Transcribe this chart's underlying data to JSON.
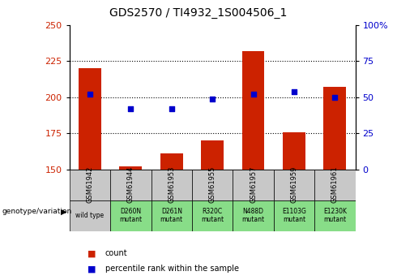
{
  "title": "GDS2570 / TI4932_1S004506_1",
  "samples": [
    "GSM61942",
    "GSM61944",
    "GSM61953",
    "GSM61955",
    "GSM61957",
    "GSM61959",
    "GSM61961"
  ],
  "genotypes": [
    "wild type",
    "D260N\nmutant",
    "D261N\nmutant",
    "R320C\nmutant",
    "N488D\nmutant",
    "E1103G\nmutant",
    "E1230K\nmutant"
  ],
  "counts": [
    220,
    152,
    161,
    170,
    232,
    176,
    207
  ],
  "percentile_ranks": [
    52,
    42,
    42,
    49,
    52,
    54,
    50
  ],
  "ylim_left": [
    150,
    250
  ],
  "ylim_right": [
    0,
    100
  ],
  "yticks_left": [
    150,
    175,
    200,
    225,
    250
  ],
  "yticks_right": [
    0,
    25,
    50,
    75,
    100
  ],
  "ytick_labels_right": [
    "0",
    "25",
    "50",
    "75",
    "100%"
  ],
  "bar_color": "#CC2200",
  "scatter_color": "#0000CC",
  "wild_type_bg": "#C8C8C8",
  "mutant_bg": "#88DD88",
  "legend_label_count": "count",
  "legend_label_pct": "percentile rank within the sample"
}
